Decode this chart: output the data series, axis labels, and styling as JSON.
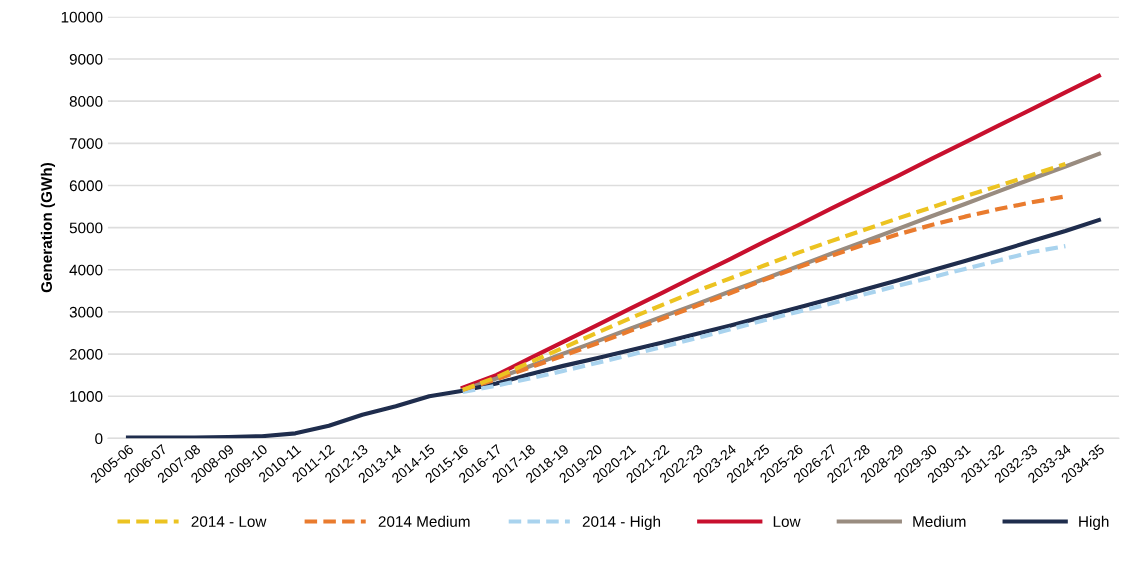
{
  "chart_data": {
    "type": "line",
    "ylabel": "Generation (GWh)",
    "categories": [
      "2005-06",
      "2006-07",
      "2007-08",
      "2008-09",
      "2009-10",
      "2010-11",
      "2011-12",
      "2012-13",
      "2013-14",
      "2014-15",
      "2015-16",
      "2016-17",
      "2017-18",
      "2018-19",
      "2019-20",
      "2020-21",
      "2021-22",
      "2022-23",
      "2023-24",
      "2024-25",
      "2025-26",
      "2026-27",
      "2027-28",
      "2028-29",
      "2029-30",
      "2030-31",
      "2031-32",
      "2032-33",
      "2033-34",
      "2034-35"
    ],
    "series": [
      {
        "name": "2014 - Low",
        "color": "#ecc321",
        "line_style": "dashed",
        "values": [
          null,
          null,
          null,
          null,
          null,
          null,
          null,
          null,
          null,
          null,
          1150,
          1450,
          1800,
          2150,
          2500,
          2850,
          3180,
          3500,
          3800,
          4100,
          4400,
          4680,
          4950,
          5220,
          5480,
          5740,
          5990,
          6250,
          6510,
          null
        ]
      },
      {
        "name": "2014 Medium",
        "color": "#e97b2e",
        "line_style": "dashed",
        "values": [
          null,
          null,
          null,
          null,
          null,
          null,
          null,
          null,
          null,
          null,
          1150,
          1400,
          1680,
          1960,
          2250,
          2550,
          2850,
          3150,
          3450,
          3760,
          4050,
          4330,
          4600,
          4840,
          5060,
          5260,
          5440,
          5600,
          5740,
          null
        ]
      },
      {
        "name": "2014 - High",
        "color": "#a9d3ee",
        "line_style": "dashed",
        "values": [
          null,
          null,
          null,
          null,
          null,
          null,
          null,
          null,
          null,
          null,
          1100,
          1250,
          1420,
          1600,
          1790,
          1980,
          2180,
          2380,
          2590,
          2800,
          3000,
          3200,
          3420,
          3620,
          3820,
          4020,
          4220,
          4420,
          4560,
          null
        ]
      },
      {
        "name": "Low",
        "color": "#c8102e",
        "line_style": "solid",
        "values": [
          null,
          null,
          null,
          null,
          null,
          null,
          null,
          null,
          null,
          null,
          1200,
          1500,
          1900,
          2290,
          2680,
          3080,
          3470,
          3870,
          4260,
          4660,
          5050,
          5450,
          5840,
          6230,
          6630,
          7020,
          7420,
          7810,
          8210,
          8600
        ]
      },
      {
        "name": "Medium",
        "color": "#998c80",
        "line_style": "solid",
        "values": [
          null,
          null,
          null,
          null,
          null,
          null,
          null,
          null,
          null,
          null,
          1150,
          1420,
          1710,
          2010,
          2300,
          2600,
          2900,
          3190,
          3490,
          3780,
          4080,
          4380,
          4670,
          4970,
          5270,
          5560,
          5860,
          6160,
          6450,
          6750
        ]
      },
      {
        "name": "High",
        "color": "#1f2d4d",
        "line_style": "solid",
        "values": [
          20,
          20,
          20,
          30,
          50,
          120,
          300,
          560,
          760,
          1000,
          1130,
          1300,
          1520,
          1720,
          1900,
          2090,
          2280,
          2480,
          2680,
          2890,
          3100,
          3310,
          3530,
          3750,
          3980,
          4210,
          4440,
          4680,
          4920,
          5180
        ]
      }
    ],
    "ylim": [
      0,
      10000
    ],
    "yticks": [
      0,
      1000,
      2000,
      3000,
      4000,
      5000,
      6000,
      7000,
      8000,
      9000,
      10000
    ],
    "grid": "y",
    "legend": "bottom",
    "marker": "none"
  }
}
